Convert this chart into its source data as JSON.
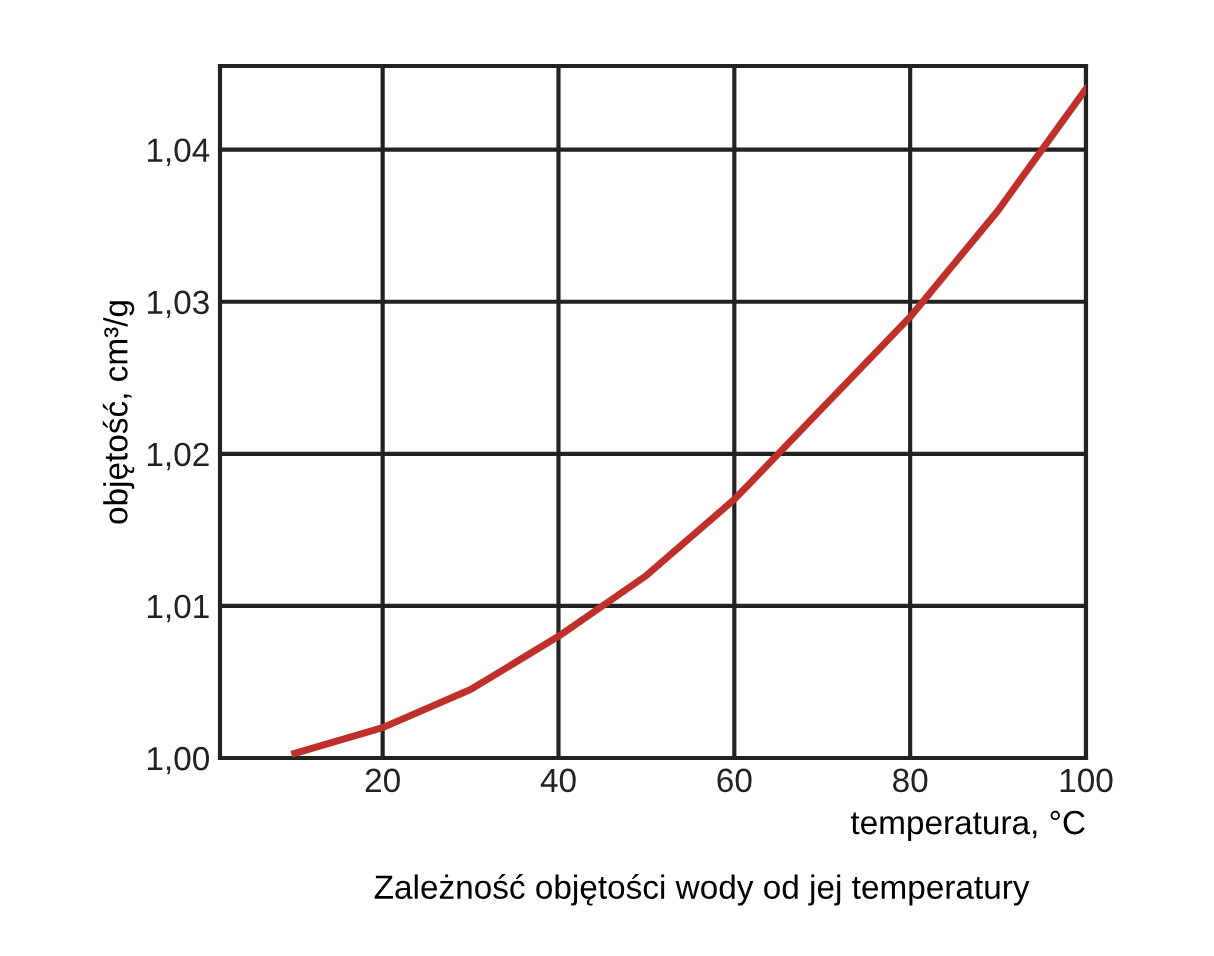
{
  "chart_data": {
    "type": "line",
    "xlabel": "temperatura, °C",
    "ylabel": "objętość, cm³/g",
    "annotations": [
      "Zależność objętości wody od jej temperatury"
    ],
    "series": [
      {
        "color": "#c0302a",
        "x": [
          10,
          20,
          30,
          40,
          50,
          60,
          70,
          80,
          90,
          100
        ],
        "values": [
          1.0003,
          1.002,
          1.0045,
          1.008,
          1.012,
          1.017,
          1.023,
          1.029,
          1.036,
          1.044
        ]
      }
    ],
    "xlim": [
      1.5,
      100
    ],
    "xticks": [
      20,
      40,
      60,
      80,
      100
    ],
    "ylim": [
      1.0,
      1.0455
    ],
    "yticks": [
      {
        "value": 1.0,
        "label": "1,00"
      },
      {
        "value": 1.01,
        "label": "1,01"
      },
      {
        "value": 1.02,
        "label": "1,02"
      },
      {
        "value": 1.03,
        "label": "1,03"
      },
      {
        "value": 1.04,
        "label": "1,04"
      }
    ],
    "grid": true,
    "marker": "none",
    "line_style": "solid",
    "legend": false
  }
}
